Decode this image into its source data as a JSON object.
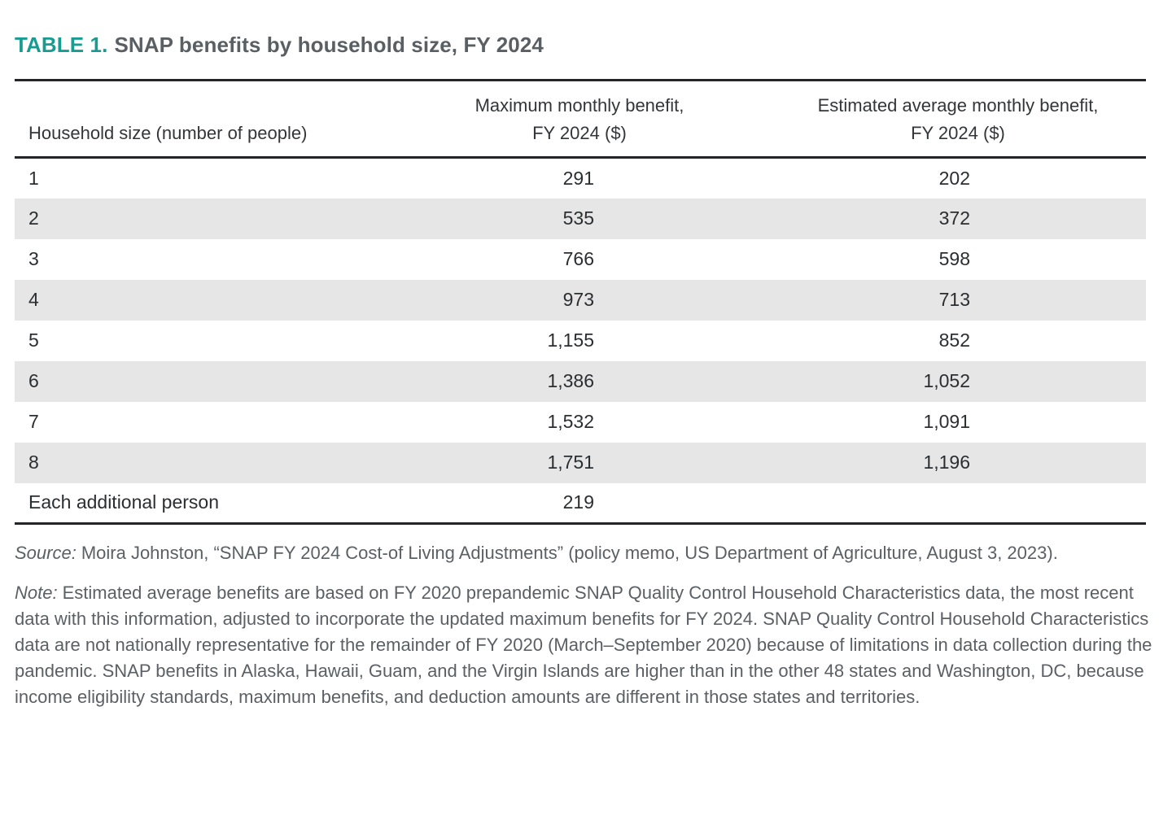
{
  "title": {
    "label": "TABLE 1.",
    "text": "SNAP benefits by household size, FY 2024"
  },
  "table": {
    "columns": {
      "household": "Household size (number of people)",
      "max": {
        "line1": "Maximum monthly benefit,",
        "line2": "FY 2024 ($)"
      },
      "avg": {
        "line1": "Estimated average monthly benefit,",
        "line2": "FY 2024 ($)"
      }
    },
    "rows": [
      {
        "household_size": "1",
        "max_benefit": "291",
        "avg_benefit": "202"
      },
      {
        "household_size": "2",
        "max_benefit": "535",
        "avg_benefit": "372"
      },
      {
        "household_size": "3",
        "max_benefit": "766",
        "avg_benefit": "598"
      },
      {
        "household_size": "4",
        "max_benefit": "973",
        "avg_benefit": "713"
      },
      {
        "household_size": "5",
        "max_benefit": "1,155",
        "avg_benefit": "852"
      },
      {
        "household_size": "6",
        "max_benefit": "1,386",
        "avg_benefit": "1,052"
      },
      {
        "household_size": "7",
        "max_benefit": "1,532",
        "avg_benefit": "1,091"
      },
      {
        "household_size": "8",
        "max_benefit": "1,751",
        "avg_benefit": "1,196"
      },
      {
        "household_size": "Each additional person",
        "max_benefit": "219",
        "avg_benefit": ""
      }
    ]
  },
  "source": {
    "lead": "Source:",
    "text": "Moira Johnston, “SNAP FY 2024 Cost-of Living Adjustments” (policy memo, US Department of Agriculture, August 3, 2023)."
  },
  "note": {
    "lead": "Note:",
    "text": "Estimated average benefits are based on FY 2020 prepandemic SNAP Quality Control Household Characteristics data, the most recent data with this information, adjusted to incorporate the updated maximum benefits for FY 2024. SNAP Quality Control Household Characteristics data are not nationally representative for the remainder of FY 2020 (March–September 2020) because of limitations in data collection during the pandemic. SNAP benefits in Alaska, Hawaii, Guam, and the Virgin Islands are higher than in the other 48 states and Washington, DC, because income eligibility standards, maximum benefits, and deduction amounts are different in those states and territories."
  },
  "colors": {
    "accent_teal": "#189c92",
    "title_gray": "#595f63",
    "row_stripe": "#e6e6e6",
    "text_dark": "#2b2e31",
    "rule_dark": "#232528"
  }
}
